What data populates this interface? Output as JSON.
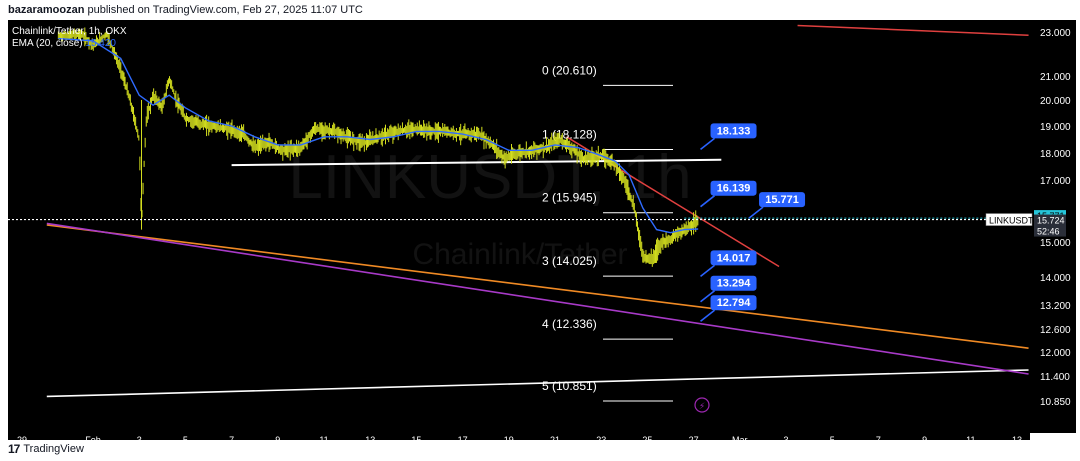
{
  "header": {
    "publisher": "bazaramoozan",
    "published_text": "published on TradingView.com, Feb 27, 2025 11:07 UTC"
  },
  "footer": {
    "brand": "TradingView",
    "logo_glyph": "17"
  },
  "colors": {
    "background": "#000000",
    "candle": "#d4df1f",
    "ema": "#2f6bff",
    "fib_line": "#ffffff",
    "support_line": "#ffffff",
    "red_line": "#e0403f",
    "orange_line": "#f08a24",
    "purple_line": "#a83ac8",
    "white_trend": "#ffffff",
    "callout": "#2962ff",
    "cyan": "#26c6da",
    "price_label_bg": "#2a2e39"
  },
  "chart_data": {
    "type": "candlestick",
    "symbol": "Chainlink/Tether, 1h, OKX",
    "indicator": {
      "name": "EMA (20, close)",
      "value": "15.420"
    },
    "watermark": {
      "ticker": "LINKUSDT, 1h",
      "name": "Chainlink/Tether"
    },
    "y_ticks": [
      "23.000",
      "21.000",
      "20.000",
      "19.000",
      "18.000",
      "17.000",
      "15.000",
      "14.000",
      "13.200",
      "12.600",
      "12.000",
      "11.400",
      "10.850"
    ],
    "y_tick_values": [
      23.0,
      21.0,
      20.0,
      19.0,
      18.0,
      17.0,
      15.0,
      14.0,
      13.2,
      12.6,
      12.0,
      11.4,
      10.85
    ],
    "x_ticks": [
      {
        "label": "29",
        "day": -0.5
      },
      {
        "label": "Feb",
        "day": 1
      },
      {
        "label": "3",
        "day": 3
      },
      {
        "label": "5",
        "day": 5
      },
      {
        "label": "7",
        "day": 7
      },
      {
        "label": "9",
        "day": 9
      },
      {
        "label": "11",
        "day": 11
      },
      {
        "label": "13",
        "day": 13
      },
      {
        "label": "15",
        "day": 15
      },
      {
        "label": "17",
        "day": 17
      },
      {
        "label": "19",
        "day": 19
      },
      {
        "label": "21",
        "day": 21
      },
      {
        "label": "23",
        "day": 23
      },
      {
        "label": "25",
        "day": 25
      },
      {
        "label": "27",
        "day": 27
      },
      {
        "label": "Mar",
        "day": 29
      },
      {
        "label": "3",
        "day": 31
      },
      {
        "label": "5",
        "day": 33
      },
      {
        "label": "7",
        "day": 35
      },
      {
        "label": "9",
        "day": 37
      },
      {
        "label": "11",
        "day": 39
      },
      {
        "label": "13",
        "day": 41
      }
    ],
    "price_path": [
      [
        -0.5,
        22.8
      ],
      [
        0.5,
        22.9
      ],
      [
        1.0,
        22.4
      ],
      [
        1.6,
        22.9
      ],
      [
        2.2,
        21.3
      ],
      [
        2.6,
        20.0
      ],
      [
        3.0,
        18.5
      ],
      [
        3.1,
        15.5
      ],
      [
        3.3,
        19.2
      ],
      [
        3.6,
        20.2
      ],
      [
        4.0,
        19.7
      ],
      [
        4.3,
        20.9
      ],
      [
        4.6,
        20.0
      ],
      [
        5.0,
        19.3
      ],
      [
        5.6,
        19.1
      ],
      [
        6.2,
        19.0
      ],
      [
        6.8,
        18.9
      ],
      [
        7.5,
        18.7
      ],
      [
        8.0,
        18.2
      ],
      [
        8.6,
        18.4
      ],
      [
        9.2,
        18.1
      ],
      [
        10.0,
        18.2
      ],
      [
        10.6,
        18.9
      ],
      [
        11.4,
        18.8
      ],
      [
        12.2,
        18.5
      ],
      [
        12.8,
        18.4
      ],
      [
        13.4,
        18.6
      ],
      [
        14.2,
        18.8
      ],
      [
        15.0,
        18.9
      ],
      [
        15.6,
        18.8
      ],
      [
        16.2,
        18.8
      ],
      [
        17.0,
        18.7
      ],
      [
        17.7,
        18.7
      ],
      [
        18.3,
        18.3
      ],
      [
        18.8,
        17.8
      ],
      [
        19.4,
        18.0
      ],
      [
        20.0,
        18.1
      ],
      [
        20.6,
        18.2
      ],
      [
        21.2,
        18.5
      ],
      [
        21.7,
        18.2
      ],
      [
        22.2,
        17.8
      ],
      [
        23.0,
        17.9
      ],
      [
        23.6,
        17.6
      ],
      [
        24.0,
        17.0
      ],
      [
        24.4,
        16.2
      ],
      [
        24.8,
        14.6
      ],
      [
        25.2,
        14.5
      ],
      [
        25.6,
        15.0
      ],
      [
        26.0,
        15.1
      ],
      [
        26.6,
        15.4
      ],
      [
        27.2,
        15.7
      ]
    ],
    "ema_path": [
      [
        -0.5,
        22.7
      ],
      [
        1.0,
        22.6
      ],
      [
        2.2,
        21.8
      ],
      [
        3.0,
        20.2
      ],
      [
        3.6,
        19.8
      ],
      [
        4.3,
        20.2
      ],
      [
        5.0,
        19.7
      ],
      [
        6.0,
        19.2
      ],
      [
        7.0,
        19.0
      ],
      [
        8.0,
        18.6
      ],
      [
        9.0,
        18.3
      ],
      [
        10.0,
        18.3
      ],
      [
        11.0,
        18.6
      ],
      [
        12.0,
        18.6
      ],
      [
        13.0,
        18.5
      ],
      [
        14.0,
        18.6
      ],
      [
        15.0,
        18.8
      ],
      [
        16.0,
        18.8
      ],
      [
        17.0,
        18.7
      ],
      [
        18.0,
        18.5
      ],
      [
        19.0,
        18.1
      ],
      [
        20.0,
        18.1
      ],
      [
        21.0,
        18.3
      ],
      [
        22.0,
        18.2
      ],
      [
        23.0,
        17.9
      ],
      [
        23.6,
        17.7
      ],
      [
        24.2,
        17.2
      ],
      [
        24.8,
        16.1
      ],
      [
        25.4,
        15.4
      ],
      [
        26.0,
        15.3
      ],
      [
        26.6,
        15.4
      ],
      [
        27.2,
        15.42
      ]
    ],
    "fib_levels": [
      {
        "label": "0 (20.610)",
        "value": 20.61
      },
      {
        "label": "1 (18.128)",
        "value": 18.128
      },
      {
        "label": "2 (15.945)",
        "value": 15.945
      },
      {
        "label": "3 (14.025)",
        "value": 14.025
      },
      {
        "label": "4 (12.336)",
        "value": 12.336
      },
      {
        "label": "5 (10.851)",
        "value": 10.851
      }
    ],
    "callouts": [
      {
        "text": "18.133",
        "value": 18.133,
        "anchor_day": 27.3
      },
      {
        "text": "16.139",
        "value": 16.139,
        "anchor_day": 27.3
      },
      {
        "text": "15.771",
        "value": 15.771,
        "anchor_day": 29.4
      },
      {
        "text": "14.017",
        "value": 14.017,
        "anchor_day": 27.3
      },
      {
        "text": "13.294",
        "value": 13.294,
        "anchor_day": 27.3
      },
      {
        "text": "12.794",
        "value": 12.794,
        "anchor_day": 27.3
      }
    ],
    "support_line": {
      "from": [
        7.0,
        17.55
      ],
      "to": [
        28.2,
        17.75
      ]
    },
    "red_trend_lines": [
      {
        "from": [
          31.5,
          23.25
        ],
        "to": [
          41.5,
          22.85
        ]
      },
      {
        "from": [
          21.5,
          18.6
        ],
        "to": [
          30.7,
          14.3
        ]
      }
    ],
    "orange_line": {
      "from": [
        -1.0,
        15.55
      ],
      "to": [
        41.5,
        12.1
      ]
    },
    "purple_line": {
      "from": [
        -1.0,
        15.6
      ],
      "to": [
        41.5,
        11.45
      ]
    },
    "white_trend_line": {
      "from": [
        -1.0,
        10.95
      ],
      "to": [
        41.5,
        11.55
      ]
    },
    "current_price_line": 15.724,
    "price_labels": {
      "cyan": "15.771",
      "ticker": "LINKUSDT",
      "price": "15.724",
      "countdown": "52:46"
    },
    "lightning_glyph": "⚡"
  }
}
